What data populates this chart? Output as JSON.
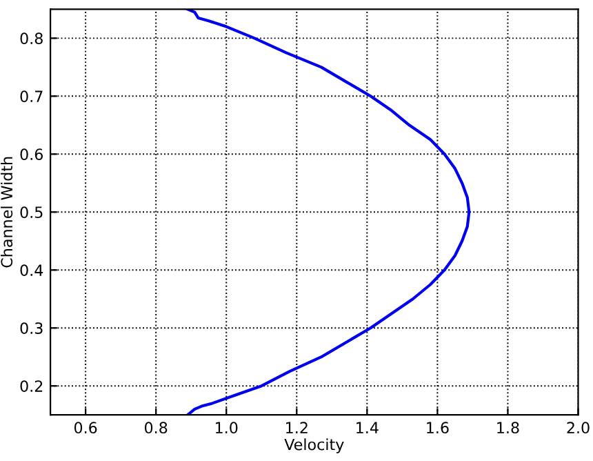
{
  "chart_data": {
    "type": "line",
    "xlabel": "Velocity",
    "ylabel": "Channel Width",
    "series": [
      {
        "color": "#0000ee",
        "x": [
          0.89,
          0.91,
          0.92,
          0.95,
          1.0,
          1.08,
          1.17,
          1.27,
          1.34,
          1.41,
          1.47,
          1.52,
          1.58,
          1.62,
          1.65,
          1.67,
          1.685,
          1.69,
          1.685,
          1.67,
          1.65,
          1.62,
          1.58,
          1.53,
          1.47,
          1.41,
          1.34,
          1.27,
          1.18,
          1.1,
          1.03,
          0.96,
          0.93,
          0.91,
          0.89
        ],
        "values": [
          0.85,
          0.845,
          0.835,
          0.83,
          0.82,
          0.8,
          0.775,
          0.75,
          0.725,
          0.7,
          0.675,
          0.65,
          0.625,
          0.6,
          0.575,
          0.55,
          0.525,
          0.5,
          0.475,
          0.45,
          0.425,
          0.4,
          0.375,
          0.35,
          0.325,
          0.3,
          0.275,
          0.25,
          0.225,
          0.2,
          0.185,
          0.17,
          0.165,
          0.16,
          0.15
        ]
      }
    ],
    "xlim": [
      0.5,
      2.0
    ],
    "xticks": [
      {
        "value": 0.6,
        "label": "0.6"
      },
      {
        "value": 0.8,
        "label": "0.8"
      },
      {
        "value": 1.0,
        "label": "1.0"
      },
      {
        "value": 1.2,
        "label": "1.2"
      },
      {
        "value": 1.4,
        "label": "1.4"
      },
      {
        "value": 1.6,
        "label": "1.6"
      },
      {
        "value": 1.8,
        "label": "1.8"
      },
      {
        "value": 2.0,
        "label": "2.0"
      }
    ],
    "ylim": [
      0.15,
      0.85
    ],
    "yticks": [
      0.2,
      0.3,
      0.4,
      0.5,
      0.6,
      0.7,
      0.8
    ],
    "grid": true,
    "line_style": "solid",
    "marker": "none"
  }
}
